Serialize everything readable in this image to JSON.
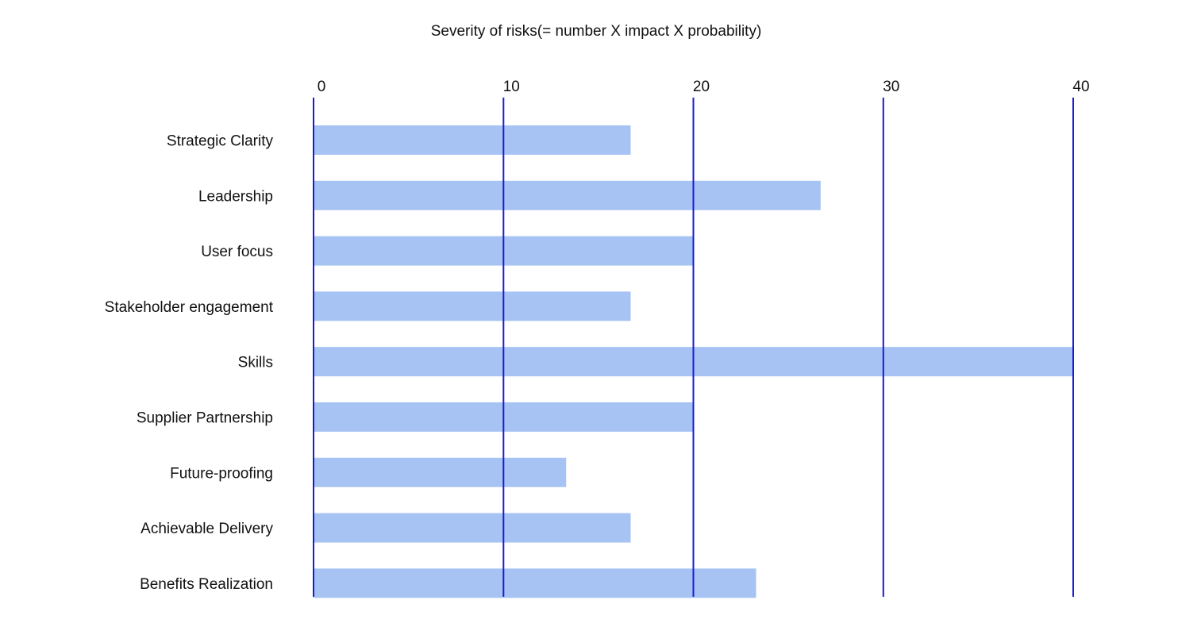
{
  "chart_data": {
    "type": "bar",
    "orientation": "horizontal",
    "title": "Severity of risks(= number X impact X probability)",
    "xlabel": "",
    "ylabel": "",
    "xlim": [
      0,
      40
    ],
    "xticks": [
      0,
      10,
      20,
      30,
      40
    ],
    "x_axis_position": "top",
    "grid": true,
    "categories": [
      "Strategic Clarity",
      "Leadership",
      "User focus",
      "Stakeholder engagement",
      "Skills",
      "Supplier Partnership",
      "Future-proofing",
      "Achievable Delivery",
      "Benefits Realization"
    ],
    "values": [
      16.7,
      26.7,
      20,
      16.7,
      40,
      20,
      13.3,
      16.7,
      23.3
    ],
    "colors": {
      "bar": "#a6c3f3",
      "grid": "#1a1ad6",
      "text": "#111111"
    }
  }
}
